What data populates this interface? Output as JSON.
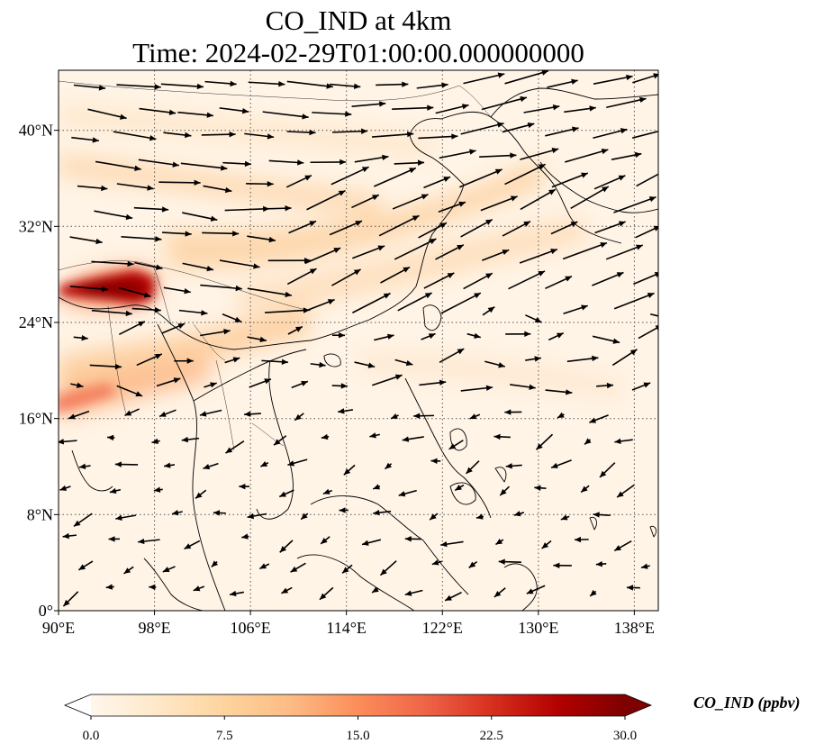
{
  "title": {
    "line1": "CO_IND at 4km",
    "line2": "Time: 2024-02-29T01:00:00.000000000"
  },
  "map": {
    "lon_range": [
      90,
      140
    ],
    "lat_range": [
      0,
      45
    ],
    "lon_ticks": [
      {
        "value": 90,
        "label": "90°E"
      },
      {
        "value": 98,
        "label": "98°E"
      },
      {
        "value": 106,
        "label": "106°E"
      },
      {
        "value": 114,
        "label": "114°E"
      },
      {
        "value": 122,
        "label": "122°E"
      },
      {
        "value": 130,
        "label": "130°E"
      },
      {
        "value": 138,
        "label": "138°E"
      }
    ],
    "lat_ticks": [
      {
        "value": 0,
        "label": "0°"
      },
      {
        "value": 8,
        "label": "8°N"
      },
      {
        "value": 16,
        "label": "16°N"
      },
      {
        "value": 24,
        "label": "24°N"
      },
      {
        "value": 32,
        "label": "32°N"
      },
      {
        "value": 40,
        "label": "40°N"
      }
    ],
    "gridlines": "dotted"
  },
  "colorbar": {
    "label": "CO_IND (ppbv)",
    "min": 0,
    "max": 30,
    "ticks": [
      {
        "value": 0,
        "label": "0.0"
      },
      {
        "value": 7.5,
        "label": "7.5"
      },
      {
        "value": 15,
        "label": "15.0"
      },
      {
        "value": 22.5,
        "label": "22.5"
      },
      {
        "value": 30,
        "label": "30.0"
      }
    ],
    "extend": "both",
    "colormap": "OrRd",
    "stops": [
      "#fff7ec",
      "#fee8c8",
      "#fdd49e",
      "#fdbb84",
      "#fc8d59",
      "#ef6548",
      "#d7301f",
      "#b30000",
      "#7f0000"
    ]
  }
}
